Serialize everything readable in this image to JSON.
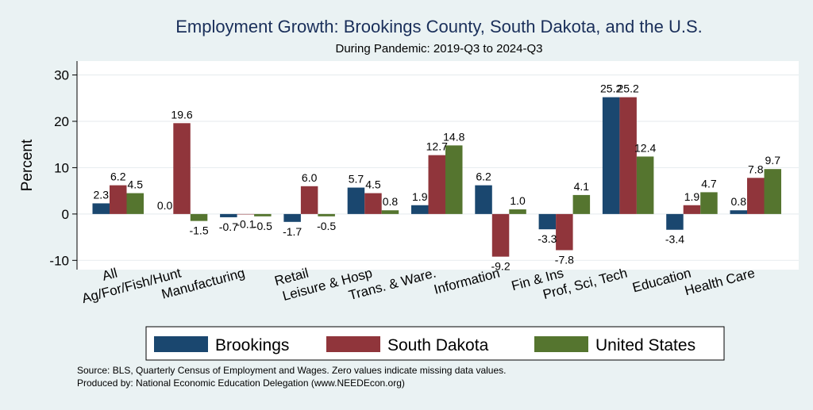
{
  "chart_data": {
    "type": "bar",
    "title": "Employment Growth: Brookings County, South Dakota, and the U.S.",
    "subtitle": "During Pandemic: 2019-Q3 to 2024-Q3",
    "ylabel": "Percent",
    "xlabel": "",
    "ylim": [
      -12,
      33
    ],
    "yticks": [
      -10,
      0,
      10,
      20,
      30
    ],
    "grid": true,
    "legend_position": "bottom",
    "categories": [
      "All",
      "Ag/For/Fish/Hunt",
      "Manufacturing",
      "Retail",
      "Leisure & Hosp",
      "Trans. & Ware.",
      "Information",
      "Fin & Ins",
      "Prof, Sci, Tech",
      "Education",
      "Health Care"
    ],
    "series": [
      {
        "name": "Brookings",
        "color": "#1a476f",
        "values": [
          2.3,
          0.0,
          -0.7,
          -1.7,
          5.7,
          1.9,
          6.2,
          -3.3,
          25.2,
          -3.4,
          0.8
        ]
      },
      {
        "name": "South Dakota",
        "color": "#90353b",
        "values": [
          6.2,
          19.6,
          -0.1,
          6.0,
          4.5,
          12.7,
          -9.2,
          -7.8,
          25.2,
          1.9,
          7.8
        ]
      },
      {
        "name": "United States",
        "color": "#55752f",
        "values": [
          4.5,
          -1.5,
          -0.5,
          -0.5,
          0.8,
          14.8,
          1.0,
          4.1,
          12.4,
          4.7,
          9.7
        ]
      }
    ],
    "notes": [
      "Source: BLS, Quarterly Census of Employment and Wages. Zero values indicate missing data values.",
      "Produced by: National Economic Education Delegation (www.NEEDEcon.org)"
    ]
  }
}
